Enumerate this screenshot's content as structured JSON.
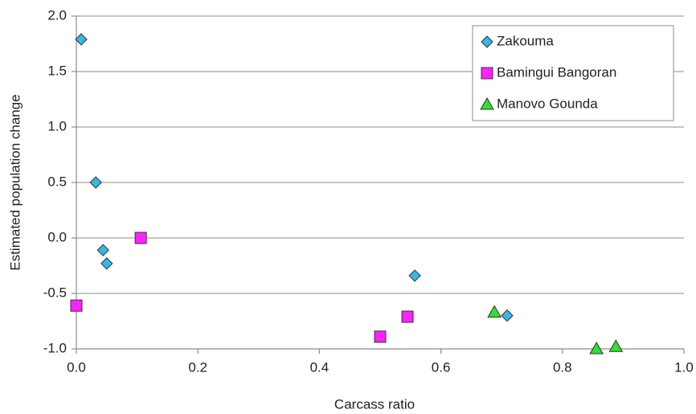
{
  "chart_data": {
    "type": "scatter",
    "x_label": "Carcass ratio",
    "y_label": "Estimated  population change",
    "xlim": [
      0,
      1
    ],
    "ylim": [
      -1,
      2
    ],
    "xticks": [
      {
        "value": 0,
        "label": "0.0"
      },
      0.2,
      0.4,
      0.6,
      0.8,
      {
        "value": 1,
        "label": "1.0"
      }
    ],
    "yticks": [
      {
        "value": -1,
        "label": "-1.0"
      },
      -0.5,
      {
        "value": 0,
        "label": "0.0"
      },
      0.5,
      {
        "value": 1,
        "label": "1.0"
      },
      1.5,
      {
        "value": 2,
        "label": "2.0"
      }
    ],
    "grid": true,
    "legend": "upper right",
    "series": [
      {
        "name": "Zakouma",
        "color": "#35b8e6",
        "marker": "diamond",
        "x": [
          0.008,
          0.032,
          0.044,
          0.05,
          0.557,
          0.709
        ],
        "y": [
          1.79,
          0.5,
          -0.11,
          -0.23,
          -0.34,
          -0.7
        ]
      },
      {
        "name": "Bamingui Bangoran",
        "color": "#ff22ff",
        "marker": "square",
        "x": [
          0.0,
          0.106,
          0.5,
          0.545
        ],
        "y": [
          -0.61,
          0.0,
          -0.89,
          -0.71
        ]
      },
      {
        "name": "Manovo Gounda",
        "color": "#33dd33",
        "marker": "triangle",
        "x": [
          0.688,
          0.856,
          0.888
        ],
        "y": [
          -0.67,
          -1.0,
          -0.98
        ]
      }
    ]
  }
}
